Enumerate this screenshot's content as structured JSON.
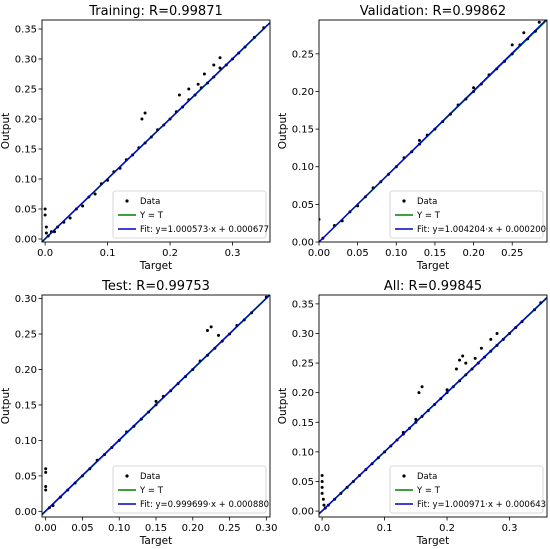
{
  "chart_data": [
    {
      "type": "scatter",
      "title": "Training: R=0.99871",
      "xlabel": "Target",
      "ylabel": "Output",
      "xlim": [
        -0.005,
        0.36
      ],
      "ylim": [
        -0.005,
        0.365
      ],
      "xticks": [
        0.0,
        0.1,
        0.2,
        0.3
      ],
      "xtick_labels": [
        "0.0",
        "0.1",
        "0.2",
        "0.3"
      ],
      "yticks": [
        0.0,
        0.05,
        0.1,
        0.15,
        0.2,
        0.25,
        0.3,
        0.35
      ],
      "ytick_labels": [
        "0.00",
        "0.05",
        "0.10",
        "0.15",
        "0.20",
        "0.25",
        "0.30",
        "0.35"
      ],
      "series": [
        {
          "name": "Data",
          "kind": "points",
          "color": "#000000",
          "points": [
            [
              0.0,
              0.05
            ],
            [
              0.0,
              0.04
            ],
            [
              0.002,
              0.02
            ],
            [
              0.002,
              0.01
            ],
            [
              0.005,
              0.005
            ],
            [
              0.01,
              0.012
            ],
            [
              0.015,
              0.012
            ],
            [
              0.02,
              0.02
            ],
            [
              0.03,
              0.028
            ],
            [
              0.04,
              0.035
            ],
            [
              0.05,
              0.05
            ],
            [
              0.06,
              0.055
            ],
            [
              0.07,
              0.07
            ],
            [
              0.08,
              0.075
            ],
            [
              0.09,
              0.092
            ],
            [
              0.1,
              0.098
            ],
            [
              0.11,
              0.112
            ],
            [
              0.12,
              0.118
            ],
            [
              0.13,
              0.132
            ],
            [
              0.14,
              0.14
            ],
            [
              0.15,
              0.152
            ],
            [
              0.16,
              0.16
            ],
            [
              0.17,
              0.17
            ],
            [
              0.18,
              0.182
            ],
            [
              0.19,
              0.19
            ],
            [
              0.2,
              0.2
            ],
            [
              0.21,
              0.212
            ],
            [
              0.22,
              0.22
            ],
            [
              0.23,
              0.232
            ],
            [
              0.24,
              0.24
            ],
            [
              0.25,
              0.252
            ],
            [
              0.26,
              0.26
            ],
            [
              0.27,
              0.27
            ],
            [
              0.28,
              0.285
            ],
            [
              0.29,
              0.29
            ],
            [
              0.3,
              0.3
            ],
            [
              0.31,
              0.31
            ],
            [
              0.32,
              0.32
            ],
            [
              0.335,
              0.336
            ],
            [
              0.35,
              0.352
            ],
            [
              0.155,
              0.2
            ],
            [
              0.16,
              0.21
            ],
            [
              0.215,
              0.24
            ],
            [
              0.23,
              0.25
            ],
            [
              0.245,
              0.258
            ],
            [
              0.255,
              0.275
            ],
            [
              0.27,
              0.29
            ],
            [
              0.28,
              0.302
            ]
          ]
        },
        {
          "name": "Y = T",
          "kind": "line",
          "color": "#008000"
        },
        {
          "name": "Fit: y=1.000573·x + 0.000677",
          "kind": "line",
          "color": "#0000cc",
          "slope": 1.000573,
          "intercept": 0.000677
        }
      ],
      "legend": "bottom-right"
    },
    {
      "type": "scatter",
      "title": "Validation: R=0.99862",
      "xlabel": "Target",
      "ylabel": "Output",
      "xlim": [
        0.0,
        0.295
      ],
      "ylim": [
        0.0,
        0.295
      ],
      "xticks": [
        0.0,
        0.05,
        0.1,
        0.15,
        0.2,
        0.25
      ],
      "xtick_labels": [
        "0.00",
        "0.05",
        "0.10",
        "0.15",
        "0.20",
        "0.25"
      ],
      "yticks": [
        0.0,
        0.05,
        0.1,
        0.15,
        0.2,
        0.25
      ],
      "ytick_labels": [
        "0.00",
        "0.05",
        "0.10",
        "0.15",
        "0.20",
        "0.25"
      ],
      "series": [
        {
          "name": "Data",
          "kind": "points",
          "color": "#000000",
          "points": [
            [
              0.0,
              0.03
            ],
            [
              0.005,
              0.005
            ],
            [
              0.02,
              0.022
            ],
            [
              0.03,
              0.028
            ],
            [
              0.04,
              0.04
            ],
            [
              0.05,
              0.048
            ],
            [
              0.06,
              0.06
            ],
            [
              0.07,
              0.072
            ],
            [
              0.08,
              0.08
            ],
            [
              0.09,
              0.09
            ],
            [
              0.1,
              0.1
            ],
            [
              0.11,
              0.112
            ],
            [
              0.12,
              0.12
            ],
            [
              0.13,
              0.13
            ],
            [
              0.14,
              0.142
            ],
            [
              0.15,
              0.15
            ],
            [
              0.16,
              0.16
            ],
            [
              0.17,
              0.17
            ],
            [
              0.18,
              0.182
            ],
            [
              0.19,
              0.19
            ],
            [
              0.2,
              0.2
            ],
            [
              0.21,
              0.21
            ],
            [
              0.22,
              0.222
            ],
            [
              0.23,
              0.23
            ],
            [
              0.24,
              0.24
            ],
            [
              0.25,
              0.25
            ],
            [
              0.26,
              0.262
            ],
            [
              0.27,
              0.27
            ],
            [
              0.28,
              0.28
            ],
            [
              0.285,
              0.292
            ],
            [
              0.25,
              0.262
            ],
            [
              0.265,
              0.278
            ],
            [
              0.2,
              0.205
            ],
            [
              0.13,
              0.135
            ]
          ]
        },
        {
          "name": "Y = T",
          "kind": "line",
          "color": "#008000"
        },
        {
          "name": "Fit: y=1.004204·x + 0.000200",
          "kind": "line",
          "color": "#0000cc",
          "slope": 1.004204,
          "intercept": 0.0002
        }
      ],
      "legend": "bottom-right"
    },
    {
      "type": "scatter",
      "title": "Test: R=0.99753",
      "xlabel": "Target",
      "ylabel": "Output",
      "xlim": [
        -0.005,
        0.305
      ],
      "ylim": [
        -0.008,
        0.305
      ],
      "xticks": [
        0.0,
        0.05,
        0.1,
        0.15,
        0.2,
        0.25,
        0.3
      ],
      "xtick_labels": [
        "0.00",
        "0.05",
        "0.10",
        "0.15",
        "0.20",
        "0.25",
        "0.30"
      ],
      "yticks": [
        0.0,
        0.05,
        0.1,
        0.15,
        0.2,
        0.25,
        0.3
      ],
      "ytick_labels": [
        "0.00",
        "0.05",
        "0.10",
        "0.15",
        "0.20",
        "0.25",
        "0.30"
      ],
      "series": [
        {
          "name": "Data",
          "kind": "points",
          "color": "#000000",
          "points": [
            [
              0.0,
              0.06
            ],
            [
              0.0,
              0.055
            ],
            [
              0.0,
              0.035
            ],
            [
              0.0,
              0.03
            ],
            [
              0.005,
              0.005
            ],
            [
              0.01,
              0.008
            ],
            [
              0.02,
              0.02
            ],
            [
              0.03,
              0.03
            ],
            [
              0.04,
              0.04
            ],
            [
              0.05,
              0.05
            ],
            [
              0.06,
              0.06
            ],
            [
              0.07,
              0.072
            ],
            [
              0.08,
              0.08
            ],
            [
              0.09,
              0.09
            ],
            [
              0.1,
              0.1
            ],
            [
              0.11,
              0.112
            ],
            [
              0.12,
              0.12
            ],
            [
              0.13,
              0.13
            ],
            [
              0.14,
              0.14
            ],
            [
              0.15,
              0.15
            ],
            [
              0.16,
              0.162
            ],
            [
              0.17,
              0.17
            ],
            [
              0.18,
              0.18
            ],
            [
              0.19,
              0.19
            ],
            [
              0.2,
              0.2
            ],
            [
              0.21,
              0.212
            ],
            [
              0.22,
              0.22
            ],
            [
              0.23,
              0.23
            ],
            [
              0.24,
              0.24
            ],
            [
              0.25,
              0.25
            ],
            [
              0.26,
              0.262
            ],
            [
              0.27,
              0.27
            ],
            [
              0.28,
              0.28
            ],
            [
              0.3,
              0.302
            ],
            [
              0.22,
              0.255
            ],
            [
              0.225,
              0.26
            ],
            [
              0.235,
              0.248
            ],
            [
              0.15,
              0.155
            ]
          ]
        },
        {
          "name": "Y = T",
          "kind": "line",
          "color": "#008000"
        },
        {
          "name": "Fit: y=0.999699·x + 0.000880",
          "kind": "line",
          "color": "#0000cc",
          "slope": 0.999699,
          "intercept": 0.00088
        }
      ],
      "legend": "bottom-right"
    },
    {
      "type": "scatter",
      "title": "All: R=0.99845",
      "xlabel": "Target",
      "ylabel": "Output",
      "xlim": [
        -0.005,
        0.36
      ],
      "ylim": [
        -0.01,
        0.365
      ],
      "xticks": [
        0.0,
        0.1,
        0.2,
        0.3
      ],
      "xtick_labels": [
        "0.0",
        "0.1",
        "0.2",
        "0.3"
      ],
      "yticks": [
        0.0,
        0.05,
        0.1,
        0.15,
        0.2,
        0.25,
        0.3,
        0.35
      ],
      "ytick_labels": [
        "0.00",
        "0.05",
        "0.10",
        "0.15",
        "0.20",
        "0.25",
        "0.30",
        "0.35"
      ],
      "series": [
        {
          "name": "Data",
          "kind": "points",
          "color": "#000000",
          "points": [
            [
              0.0,
              0.06
            ],
            [
              0.0,
              0.05
            ],
            [
              0.0,
              0.04
            ],
            [
              0.0,
              0.03
            ],
            [
              0.002,
              0.02
            ],
            [
              0.003,
              0.01
            ],
            [
              0.005,
              0.005
            ],
            [
              0.01,
              0.01
            ],
            [
              0.02,
              0.02
            ],
            [
              0.03,
              0.03
            ],
            [
              0.04,
              0.04
            ],
            [
              0.05,
              0.05
            ],
            [
              0.06,
              0.06
            ],
            [
              0.07,
              0.07
            ],
            [
              0.08,
              0.08
            ],
            [
              0.09,
              0.09
            ],
            [
              0.1,
              0.1
            ],
            [
              0.11,
              0.11
            ],
            [
              0.12,
              0.12
            ],
            [
              0.13,
              0.13
            ],
            [
              0.14,
              0.14
            ],
            [
              0.15,
              0.15
            ],
            [
              0.16,
              0.16
            ],
            [
              0.17,
              0.17
            ],
            [
              0.18,
              0.18
            ],
            [
              0.19,
              0.19
            ],
            [
              0.2,
              0.2
            ],
            [
              0.21,
              0.21
            ],
            [
              0.22,
              0.22
            ],
            [
              0.23,
              0.23
            ],
            [
              0.24,
              0.24
            ],
            [
              0.25,
              0.25
            ],
            [
              0.26,
              0.26
            ],
            [
              0.27,
              0.27
            ],
            [
              0.28,
              0.28
            ],
            [
              0.29,
              0.29
            ],
            [
              0.3,
              0.3
            ],
            [
              0.31,
              0.31
            ],
            [
              0.32,
              0.32
            ],
            [
              0.34,
              0.34
            ],
            [
              0.35,
              0.352
            ],
            [
              0.155,
              0.2
            ],
            [
              0.16,
              0.21
            ],
            [
              0.215,
              0.24
            ],
            [
              0.23,
              0.25
            ],
            [
              0.245,
              0.258
            ],
            [
              0.255,
              0.275
            ],
            [
              0.27,
              0.29
            ],
            [
              0.28,
              0.3
            ],
            [
              0.22,
              0.255
            ],
            [
              0.225,
              0.262
            ],
            [
              0.2,
              0.205
            ],
            [
              0.15,
              0.155
            ],
            [
              0.13,
              0.133
            ]
          ]
        },
        {
          "name": "Y = T",
          "kind": "line",
          "color": "#008000"
        },
        {
          "name": "Fit: y=1.000971·x + 0.000643",
          "kind": "line",
          "color": "#0000cc",
          "slope": 1.000971,
          "intercept": 0.000643
        }
      ],
      "legend": "bottom-right"
    }
  ]
}
